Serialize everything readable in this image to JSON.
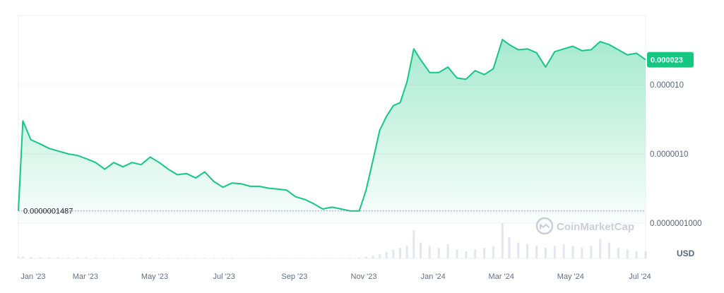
{
  "chart_data": {
    "type": "area",
    "scale": "log",
    "x_ticks": [
      "Jan '23",
      "Mar '23",
      "May '23",
      "Jul '23",
      "Sep '23",
      "Nov '23",
      "Jan '24",
      "Mar '24",
      "May '24",
      "Jul '24"
    ],
    "y_ticks": [
      "0.000010",
      "0.0000010",
      "0.0000001000"
    ],
    "current_price_label": "0.000023",
    "min_price_label": "0.0000001487",
    "currency": "USD",
    "watermark": "CoinMarketCap",
    "line_color": "#16c784",
    "badge_color": "#16c784",
    "grid": true,
    "series": [
      {
        "dates": [
          "2023-01-01",
          "2023-01-05",
          "2023-01-12",
          "2023-01-20",
          "2023-01-28",
          "2023-02-05",
          "2023-02-14",
          "2023-02-22",
          "2023-03-02",
          "2023-03-10",
          "2023-03-18",
          "2023-03-26",
          "2023-04-03",
          "2023-04-11",
          "2023-04-19",
          "2023-04-27",
          "2023-05-05",
          "2023-05-13",
          "2023-05-21",
          "2023-05-29",
          "2023-06-06",
          "2023-06-14",
          "2023-06-22",
          "2023-06-30",
          "2023-07-08",
          "2023-07-16",
          "2023-07-24",
          "2023-08-01",
          "2023-08-09",
          "2023-08-17",
          "2023-08-25",
          "2023-09-02",
          "2023-09-10",
          "2023-09-18",
          "2023-09-26",
          "2023-10-04",
          "2023-10-12",
          "2023-10-20",
          "2023-10-28",
          "2023-11-03",
          "2023-11-09",
          "2023-11-15",
          "2023-11-21",
          "2023-11-27",
          "2023-12-03",
          "2023-12-09",
          "2023-12-15",
          "2023-12-21",
          "2023-12-29",
          "2024-01-06",
          "2024-01-14",
          "2024-01-22",
          "2024-01-30",
          "2024-02-07",
          "2024-02-15",
          "2024-02-23",
          "2024-03-02",
          "2024-03-08",
          "2024-03-16",
          "2024-03-24",
          "2024-04-01",
          "2024-04-09",
          "2024-04-17",
          "2024-04-25",
          "2024-05-03",
          "2024-05-11",
          "2024-05-19",
          "2024-05-27",
          "2024-06-04",
          "2024-06-12",
          "2024-06-20",
          "2024-06-28",
          "2024-07-06"
        ],
        "values": [
          1.5e-07,
          3e-06,
          1.6e-06,
          1.4e-06,
          1.2e-06,
          1.1e-06,
          1e-06,
          9.5e-07,
          8.5e-07,
          7.5e-07,
          6e-07,
          7.5e-07,
          6.5e-07,
          7.5e-07,
          7e-07,
          9e-07,
          7.5e-07,
          6e-07,
          5e-07,
          5.2e-07,
          4.5e-07,
          5.5e-07,
          4e-07,
          3.3e-07,
          3.8e-07,
          3.7e-07,
          3.4e-07,
          3.4e-07,
          3.2e-07,
          3.1e-07,
          3e-07,
          2.4e-07,
          2.2e-07,
          1.9e-07,
          1.6e-07,
          1.7e-07,
          1.6e-07,
          1.5e-07,
          1.5e-07,
          3e-07,
          8e-07,
          2.2e-06,
          3.5e-06,
          5e-06,
          5.5e-06,
          1.1e-05,
          3.3e-05,
          2.3e-05,
          1.5e-05,
          1.5e-05,
          1.8e-05,
          1.25e-05,
          1.2e-05,
          1.6e-05,
          1.4e-05,
          1.7e-05,
          4.5e-05,
          3.8e-05,
          3.2e-05,
          3.3e-05,
          2.9e-05,
          1.8e-05,
          3e-05,
          3.3e-05,
          3.6e-05,
          3.1e-05,
          3.2e-05,
          4.2e-05,
          3.8e-05,
          3.2e-05,
          2.7e-05,
          2.85e-05,
          2.3e-05
        ],
        "volume": [
          0.05,
          0.05,
          0.04,
          0.04,
          0.03,
          0.03,
          0.03,
          0.03,
          0.03,
          0.03,
          0.02,
          0.02,
          0.02,
          0.02,
          0.03,
          0.03,
          0.02,
          0.02,
          0.02,
          0.02,
          0.02,
          0.02,
          0.02,
          0.02,
          0.02,
          0.01,
          0.01,
          0.01,
          0.01,
          0.01,
          0.01,
          0.01,
          0.01,
          0.01,
          0.01,
          0.01,
          0.02,
          0.02,
          0.03,
          0.05,
          0.08,
          0.12,
          0.18,
          0.25,
          0.3,
          0.35,
          0.8,
          0.45,
          0.35,
          0.3,
          0.4,
          0.25,
          0.2,
          0.25,
          0.3,
          0.35,
          1.0,
          0.6,
          0.45,
          0.4,
          0.35,
          0.3,
          0.35,
          0.4,
          0.35,
          0.3,
          0.35,
          0.55,
          0.45,
          0.3,
          0.25,
          0.2,
          0.2
        ]
      }
    ]
  }
}
